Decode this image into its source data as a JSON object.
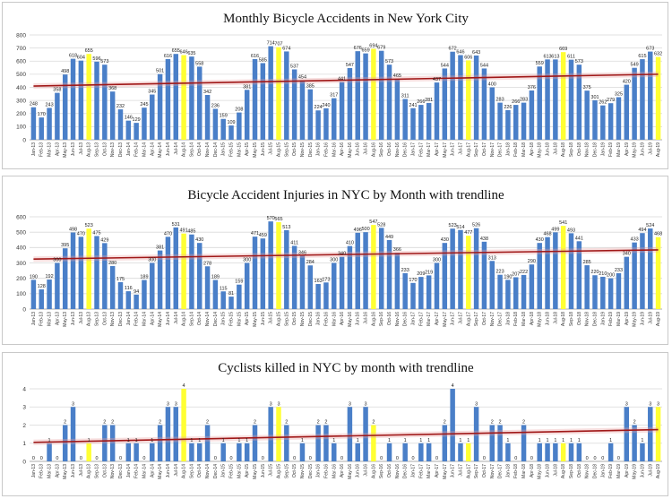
{
  "colors": {
    "bar": "#4a7fc8",
    "highlight": "#ffff33",
    "trend": "#a01818",
    "trend_band": "#e9a0a0",
    "grid": "#d9d9d9"
  },
  "chart_data": [
    {
      "type": "bar",
      "title": "Monthly Bicycle Accidents in New York City",
      "xlabel": "",
      "ylabel": "",
      "ylim": [
        0,
        800
      ],
      "yticks": [
        "0",
        "100",
        "200",
        "300",
        "400",
        "500",
        "600",
        "700",
        "800"
      ],
      "categories": [
        "Jan-13",
        "Feb-13",
        "Mar-13",
        "Apr-13",
        "May-13",
        "Jun-13",
        "Jul-13",
        "Aug-13",
        "Sep-13",
        "Oct-13",
        "Nov-13",
        "Dec-13",
        "Jan-14",
        "Feb-14",
        "Mar-14",
        "Apr-14",
        "May-14",
        "Jun-14",
        "Jul-14",
        "Aug-14",
        "Sep-14",
        "Oct-14",
        "Nov-14",
        "Dec-14",
        "Jan-15",
        "Feb-15",
        "Mar-15",
        "Apr-15",
        "May-15",
        "Jun-15",
        "Jul-15",
        "Aug-15",
        "Sep-15",
        "Oct-15",
        "Nov-15",
        "Dec-15",
        "Jan-16",
        "Feb-16",
        "Mar-16",
        "Apr-16",
        "May-16",
        "Jun-16",
        "Jul-16",
        "Aug-16",
        "Sep-16",
        "Oct-16",
        "Nov-16",
        "Dec-16",
        "Jan-17",
        "Feb-17",
        "Mar-17",
        "Apr-17",
        "May-17",
        "Jun-17",
        "Jul-17",
        "Aug-17",
        "Sep-17",
        "Oct-17",
        "Nov-17",
        "Dec-17",
        "Jan-18",
        "Feb-18",
        "Mar-18",
        "Apr-18",
        "May-18",
        "Jun-18",
        "Jul-18",
        "Aug-18",
        "Sep-18",
        "Oct-18",
        "Nov-18",
        "Dec-18",
        "Jan-19",
        "Feb-19",
        "Mar-19",
        "Apr-19",
        "May-19",
        "Jun-19",
        "Jul-19",
        "Aug-19"
      ],
      "values": [
        248,
        170,
        243,
        358,
        498,
        618,
        604,
        655,
        596,
        573,
        368,
        232,
        146,
        129,
        245,
        345,
        501,
        616,
        655,
        646,
        635,
        558,
        342,
        236,
        159,
        109,
        208,
        381,
        616,
        585,
        714,
        707,
        674,
        537,
        454,
        385,
        224,
        240,
        317,
        441,
        547,
        676,
        659,
        694,
        679,
        573,
        465,
        311,
        241,
        266,
        281,
        437,
        544,
        672,
        646,
        606,
        643,
        544,
        400,
        283,
        226,
        266,
        283,
        376,
        559,
        613,
        613,
        669,
        611,
        573,
        375,
        301,
        262,
        279,
        325,
        420,
        549,
        615,
        673,
        632
      ],
      "highlight": [
        7,
        19,
        31,
        43,
        55,
        67,
        79
      ],
      "trend": {
        "start": 410,
        "end": 500
      }
    },
    {
      "type": "bar",
      "title": "Bicycle Accident Injuries in NYC by Month with trendline",
      "xlabel": "",
      "ylabel": "",
      "ylim": [
        0,
        600
      ],
      "yticks": [
        "0",
        "100",
        "200",
        "300",
        "400",
        "500",
        "600"
      ],
      "categories": [
        "Jan-13",
        "Feb-13",
        "Mar-13",
        "Apr-13",
        "May-13",
        "Jun-13",
        "Jul-13",
        "Aug-13",
        "Sep-13",
        "Oct-13",
        "Nov-13",
        "Dec-13",
        "Jan-14",
        "Feb-14",
        "Mar-14",
        "Apr-14",
        "May-14",
        "Jun-14",
        "Jul-14",
        "Aug-14",
        "Sep-14",
        "Oct-14",
        "Nov-14",
        "Dec-14",
        "Jan-15",
        "Feb-15",
        "Mar-15",
        "Apr-15",
        "May-15",
        "Jun-15",
        "Jul-15",
        "Aug-15",
        "Sep-15",
        "Oct-15",
        "Nov-15",
        "Dec-15",
        "Jan-16",
        "Feb-16",
        "Mar-16",
        "Apr-16",
        "May-16",
        "Jun-16",
        "Jul-16",
        "Aug-16",
        "Sep-16",
        "Oct-16",
        "Nov-16",
        "Dec-16",
        "Jan-17",
        "Feb-17",
        "Mar-17",
        "Apr-17",
        "May-17",
        "Jun-17",
        "Jul-17",
        "Aug-17",
        "Sep-17",
        "Oct-17",
        "Nov-17",
        "Dec-17",
        "Jan-18",
        "Feb-18",
        "Mar-18",
        "Apr-18",
        "May-18",
        "Jun-18",
        "Jul-18",
        "Aug-18",
        "Sep-18",
        "Oct-18",
        "Nov-18",
        "Dec-18",
        "Jan-19",
        "Feb-19",
        "Mar-19",
        "Apr-19",
        "May-19",
        "Jun-19",
        "Jul-19",
        "Aug-19"
      ],
      "values": [
        190,
        128,
        192,
        300,
        395,
        498,
        470,
        523,
        475,
        429,
        280,
        175,
        116,
        94,
        189,
        300,
        381,
        470,
        531,
        491,
        485,
        430,
        278,
        189,
        115,
        81,
        159,
        300,
        471,
        459,
        570,
        565,
        513,
        411,
        346,
        284,
        163,
        173,
        300,
        340,
        410,
        496,
        500,
        547,
        528,
        449,
        366,
        233,
        170,
        209,
        219,
        300,
        430,
        523,
        514,
        477,
        526,
        438,
        313,
        223,
        190,
        207,
        222,
        290,
        430,
        468,
        499,
        541,
        493,
        441,
        285,
        220,
        210,
        200,
        233,
        340,
        433,
        494,
        524,
        468
      ],
      "highlight": [
        7,
        19,
        31,
        43,
        55,
        67,
        79
      ],
      "trend": {
        "start": 325,
        "end": 385
      }
    },
    {
      "type": "bar",
      "title": "Cyclists killed in NYC  by month with trendline",
      "xlabel": "",
      "ylabel": "",
      "ylim": [
        0,
        4
      ],
      "yticks": [
        "0",
        "1",
        "2",
        "3",
        "4"
      ],
      "categories": [
        "Jan-13",
        "Feb-13",
        "Mar-13",
        "Apr-13",
        "May-13",
        "Jun-13",
        "Jul-13",
        "Aug-13",
        "Sep-13",
        "Oct-13",
        "Nov-13",
        "Dec-13",
        "Jan-14",
        "Feb-14",
        "Mar-14",
        "Apr-14",
        "May-14",
        "Jun-14",
        "Jul-14",
        "Aug-14",
        "Sep-14",
        "Oct-14",
        "Nov-14",
        "Dec-14",
        "Jan-15",
        "Feb-15",
        "Mar-15",
        "Apr-15",
        "May-15",
        "Jun-15",
        "Jul-15",
        "Aug-15",
        "Sep-15",
        "Oct-15",
        "Nov-15",
        "Dec-15",
        "Jan-16",
        "Feb-16",
        "Mar-16",
        "Apr-16",
        "May-16",
        "Jun-16",
        "Jul-16",
        "Aug-16",
        "Sep-16",
        "Oct-16",
        "Nov-16",
        "Dec-16",
        "Jan-17",
        "Feb-17",
        "Mar-17",
        "Apr-17",
        "May-17",
        "Jun-17",
        "Jul-17",
        "Aug-17",
        "Sep-17",
        "Oct-17",
        "Nov-17",
        "Dec-17",
        "Jan-18",
        "Feb-18",
        "Mar-18",
        "Apr-18",
        "May-18",
        "Jun-18",
        "Jul-18",
        "Aug-18",
        "Sep-18",
        "Oct-18",
        "Nov-18",
        "Dec-18",
        "Jan-19",
        "Feb-19",
        "Mar-19",
        "Apr-19",
        "May-19",
        "Jun-19",
        "Jul-19",
        "Aug-19"
      ],
      "values": [
        0,
        0,
        1,
        0,
        2,
        3,
        0,
        1,
        0,
        2,
        2,
        0,
        1,
        1,
        0,
        1,
        2,
        3,
        3,
        4,
        1,
        1,
        2,
        0,
        1,
        0,
        1,
        1,
        2,
        0,
        3,
        3,
        2,
        0,
        1,
        0,
        2,
        2,
        1,
        0,
        3,
        1,
        3,
        2,
        0,
        1,
        0,
        1,
        0,
        1,
        1,
        0,
        2,
        4,
        1,
        1,
        3,
        0,
        2,
        2,
        1,
        0,
        2,
        0,
        1,
        1,
        1,
        1,
        1,
        1,
        0,
        0,
        0,
        1,
        0,
        3,
        2,
        1,
        3,
        3
      ],
      "highlight": [
        7,
        19,
        31,
        43,
        55,
        67,
        79
      ],
      "trend": {
        "start": 1.05,
        "end": 1.75
      }
    }
  ]
}
